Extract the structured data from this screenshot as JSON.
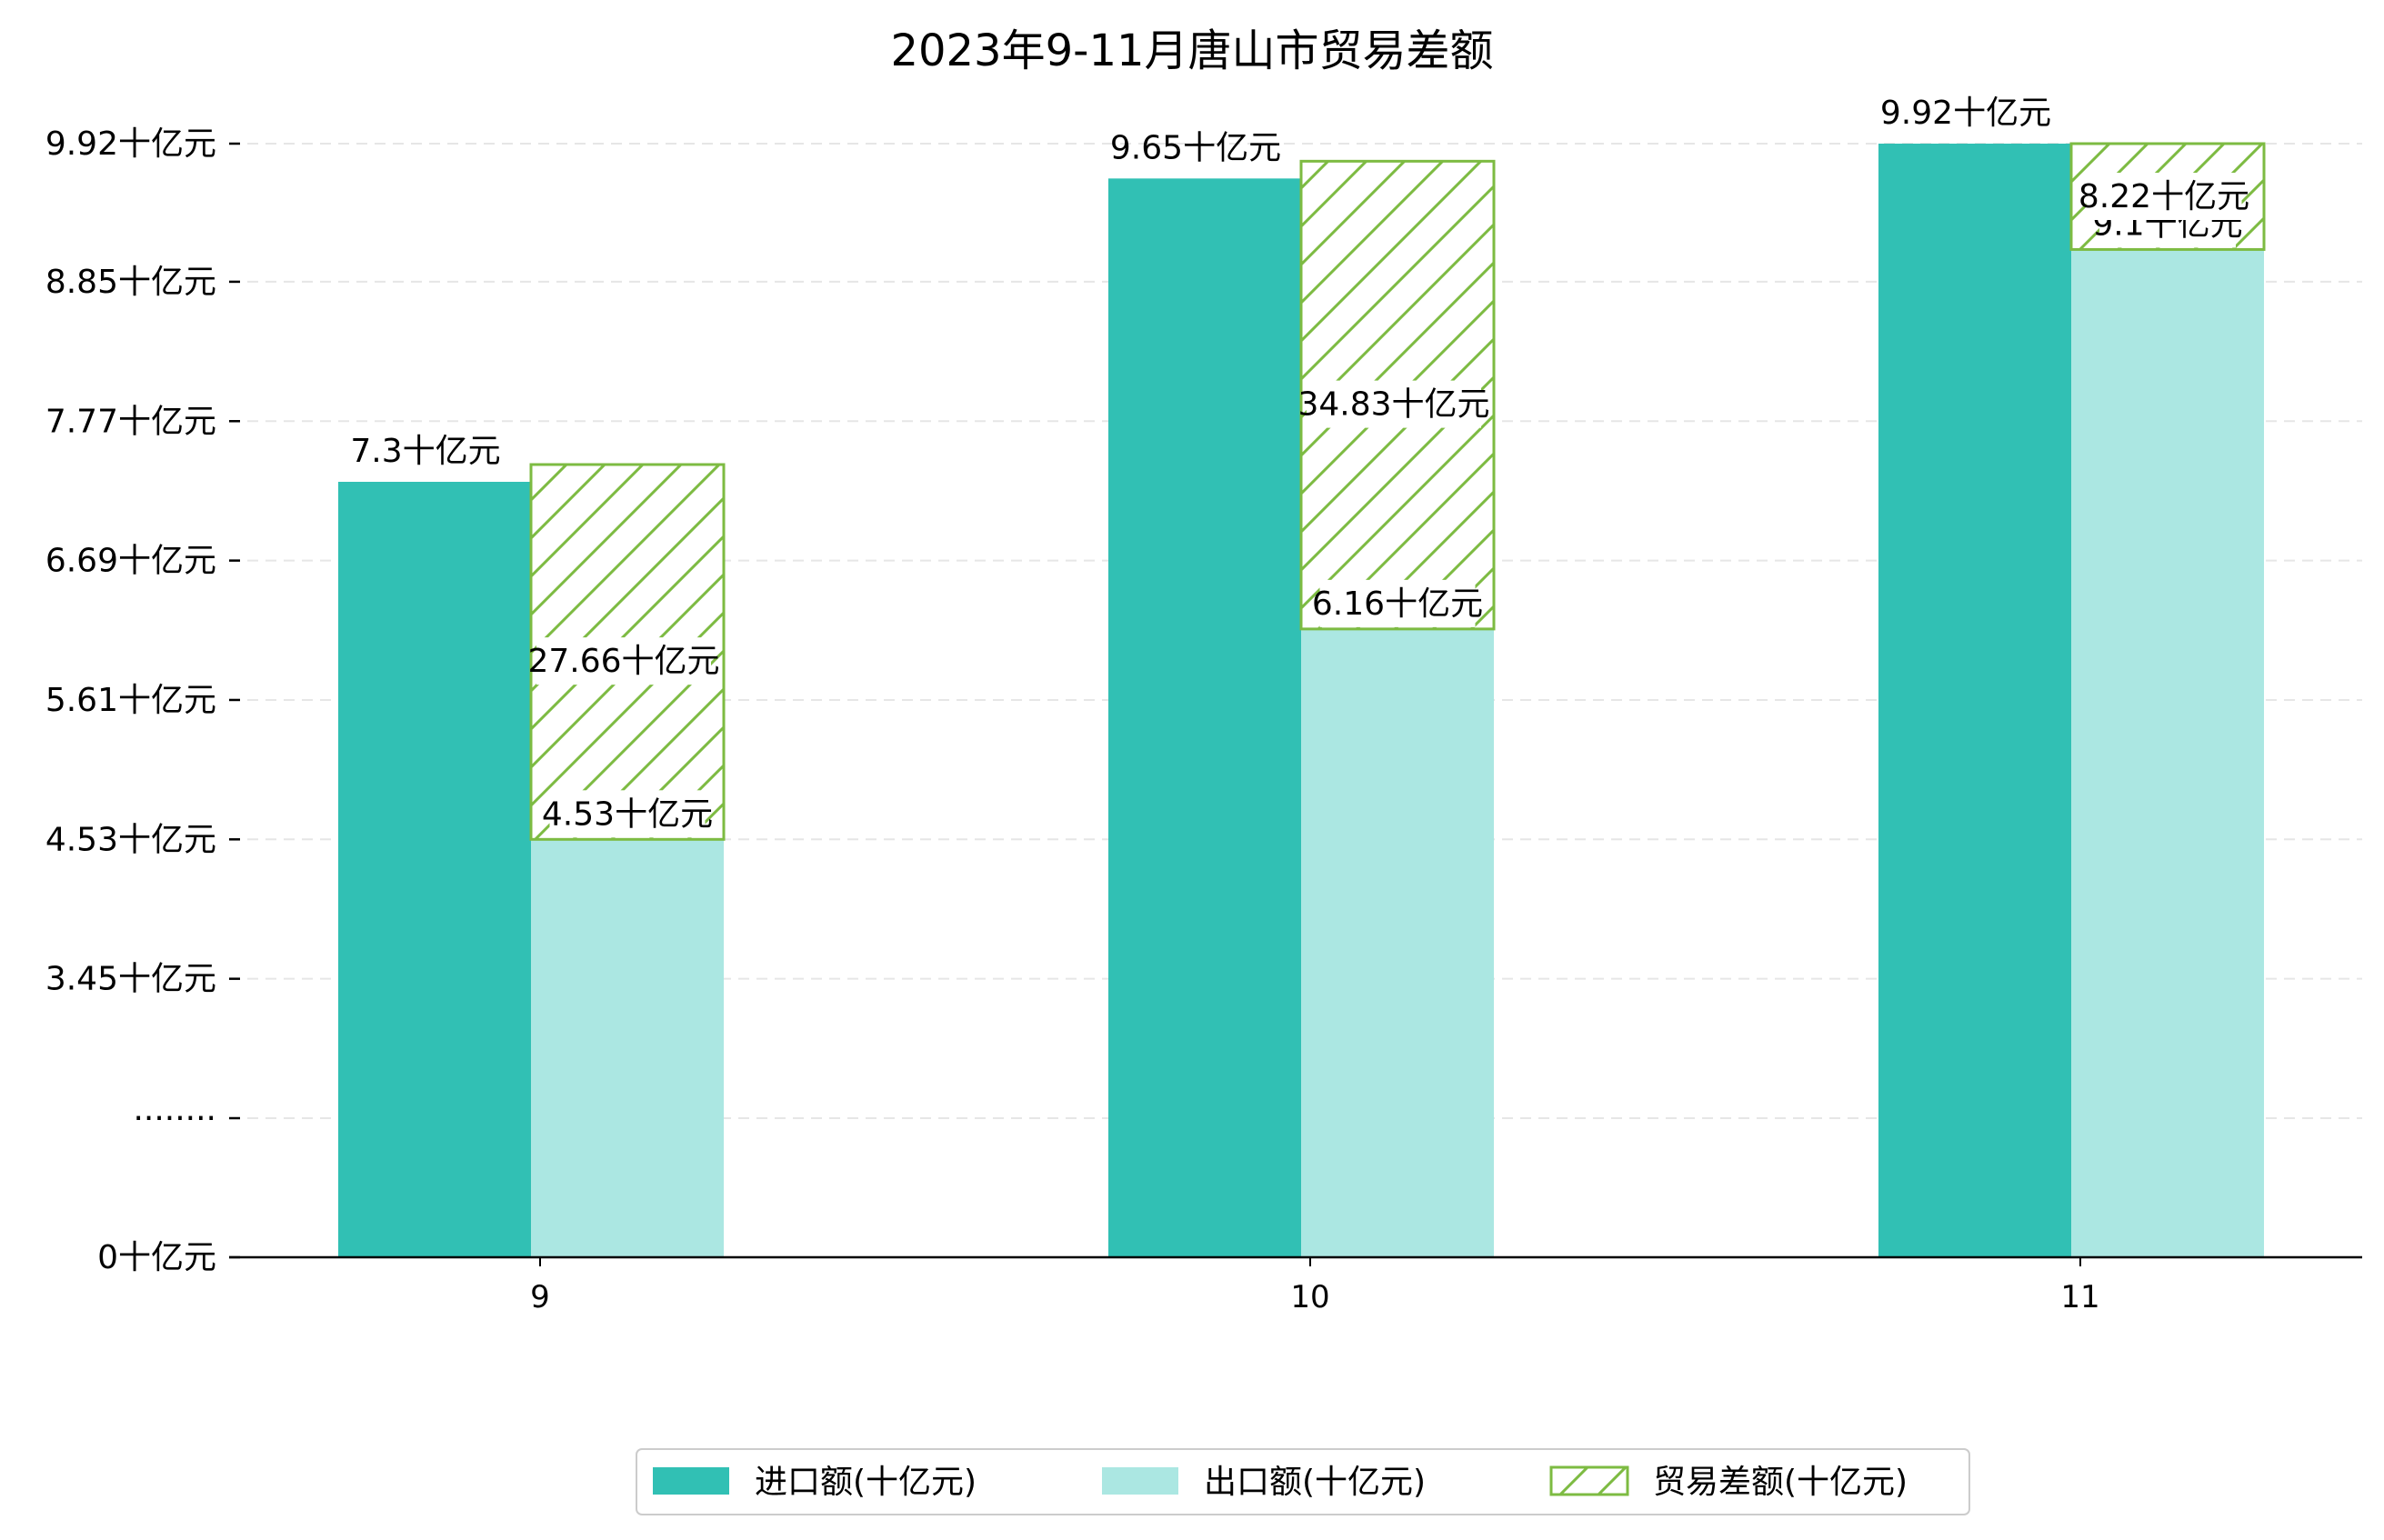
{
  "chart_data": {
    "type": "bar",
    "title": "2023年9-11月唐山市贸易差额",
    "categories": [
      "9",
      "10",
      "11"
    ],
    "series": [
      {
        "name": "进口额(十亿元)",
        "color": "#31c0b4",
        "values": [
          7.3,
          9.65,
          9.92
        ],
        "labels": [
          "7.3十亿元",
          "9.65十亿元",
          "9.92十亿元"
        ]
      },
      {
        "name": "出口额(十亿元)",
        "color": "#abe7e2",
        "values": [
          4.53,
          6.16,
          9.1
        ],
        "labels": [
          "4.53十亿元",
          "6.16十亿元",
          "9.1十亿元"
        ]
      },
      {
        "name": "贸易差额(十亿元)",
        "color": "#7dbb42",
        "style": "hatched",
        "values": [
          27.66,
          34.83,
          8.22
        ],
        "labels": [
          "27.66十亿元",
          "34.83十亿元",
          "8.22十亿元"
        ]
      }
    ],
    "y_ticks": [
      {
        "value": 0,
        "label": "0十亿元"
      },
      {
        "value": 2.37,
        "label": "········"
      },
      {
        "value": 3.45,
        "label": "3.45十亿元"
      },
      {
        "value": 4.53,
        "label": "4.53十亿元"
      },
      {
        "value": 5.61,
        "label": "5.61十亿元"
      },
      {
        "value": 6.69,
        "label": "6.69十亿元"
      },
      {
        "value": 7.77,
        "label": "7.77十亿元"
      },
      {
        "value": 8.85,
        "label": "8.85十亿元"
      },
      {
        "value": 9.92,
        "label": "9.92十亿元"
      }
    ],
    "axis_break": "broken y-axis between 0 and 2.37",
    "grid": "horizontal dashed",
    "legend_position": "bottom-center",
    "xlabel": "",
    "ylabel": ""
  }
}
